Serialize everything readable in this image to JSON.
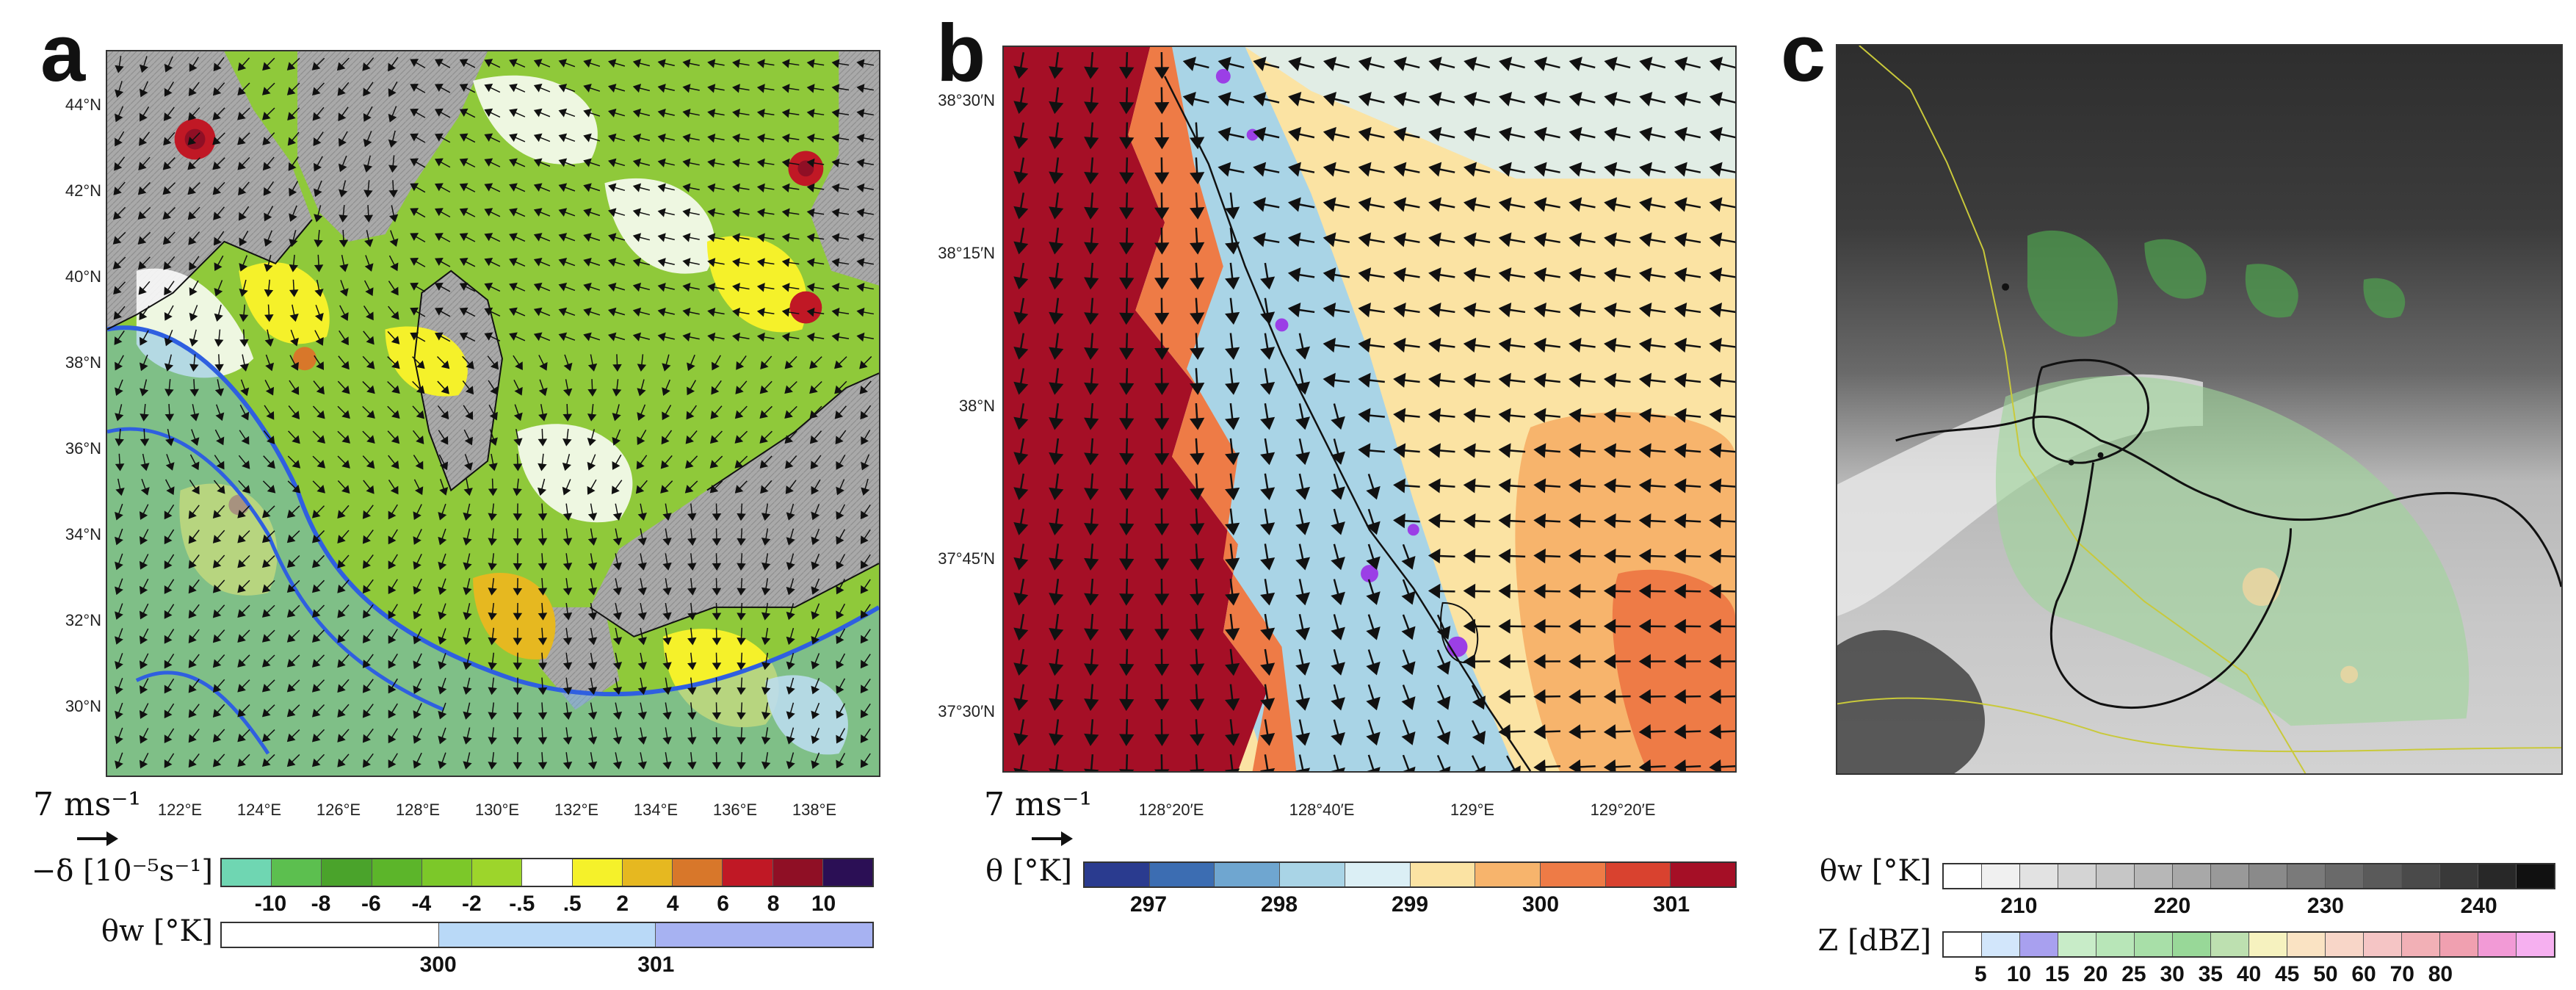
{
  "panels": {
    "a": {
      "letter": "a",
      "lat_ticks": [
        "44°N",
        "42°N",
        "40°N",
        "38°N",
        "36°N",
        "34°N",
        "32°N",
        "30°N"
      ],
      "lon_ticks": [
        "122°E",
        "124°E",
        "126°E",
        "128°E",
        "130°E",
        "132°E",
        "134°E",
        "136°E",
        "138°E"
      ],
      "ref_vector": "7 ms⁻¹",
      "colorbar_div": {
        "label": "−δ [10⁻⁵s⁻¹]",
        "colors": [
          "#6fd6b2",
          "#5cbf4f",
          "#4aa32b",
          "#5cb52a",
          "#7cc829",
          "#9dd52b",
          "#ffffff",
          "#f5f12a",
          "#e6b820",
          "#d8772a",
          "#c01825",
          "#8f0f25",
          "#2b0f55"
        ],
        "ticks": [
          "-10",
          "-8",
          "-6",
          "-4",
          "-2",
          "-.5",
          ".5",
          "2",
          "4",
          "6",
          "8",
          "10"
        ]
      },
      "colorbar_theta": {
        "label": "θw [°K]",
        "colors": [
          "#ffffff",
          "#b9d9f7",
          "#a7b2f2"
        ],
        "ticks": [
          "300",
          "301"
        ]
      }
    },
    "b": {
      "letter": "b",
      "lat_ticks": [
        "38°30′N",
        "38°15′N",
        "38°N",
        "37°45′N",
        "37°30′N"
      ],
      "lon_ticks": [
        "128°20′E",
        "128°40′E",
        "129°E",
        "129°20′E"
      ],
      "ref_vector": "7 ms⁻¹",
      "colorbar_theta": {
        "label": "θ [°K]",
        "colors": [
          "#2a3b8f",
          "#3c6db2",
          "#6fa6d0",
          "#a9d4e6",
          "#dbeff5",
          "#fbe3a3",
          "#f7b46c",
          "#ee7b46",
          "#d9422f",
          "#a50f26"
        ],
        "ticks": [
          "297",
          "298",
          "299",
          "300",
          "301"
        ]
      }
    },
    "c": {
      "letter": "c",
      "colorbar_theta": {
        "label": "θw [°K]",
        "colors": [
          "#ffffff",
          "#f0f0f0",
          "#e2e2e2",
          "#d4d4d4",
          "#c6c6c6",
          "#b7b7b7",
          "#a8a8a8",
          "#999999",
          "#8a8a8a",
          "#7a7a7a",
          "#6a6a6a",
          "#5a5a5a",
          "#4a4a4a",
          "#393939",
          "#282828",
          "#111111"
        ],
        "ticks": [
          "210",
          "220",
          "230",
          "240"
        ]
      },
      "colorbar_z": {
        "label": "Z [dBZ]",
        "colors": [
          "#ffffff",
          "#d2e6fb",
          "#a8a0ef",
          "#c8ecc8",
          "#b8e6b8",
          "#a8dfa8",
          "#98d898",
          "#bde0b0",
          "#f6f2bf",
          "#fae3c3",
          "#f8d6c8",
          "#f5c5c5",
          "#f2b0b6",
          "#f0a0b0",
          "#f29ad6",
          "#f6b0f0"
        ],
        "ticks": [
          "5",
          "10",
          "15",
          "20",
          "25",
          "30",
          "35",
          "40",
          "45",
          "50",
          "60",
          "70",
          "80"
        ]
      }
    }
  }
}
